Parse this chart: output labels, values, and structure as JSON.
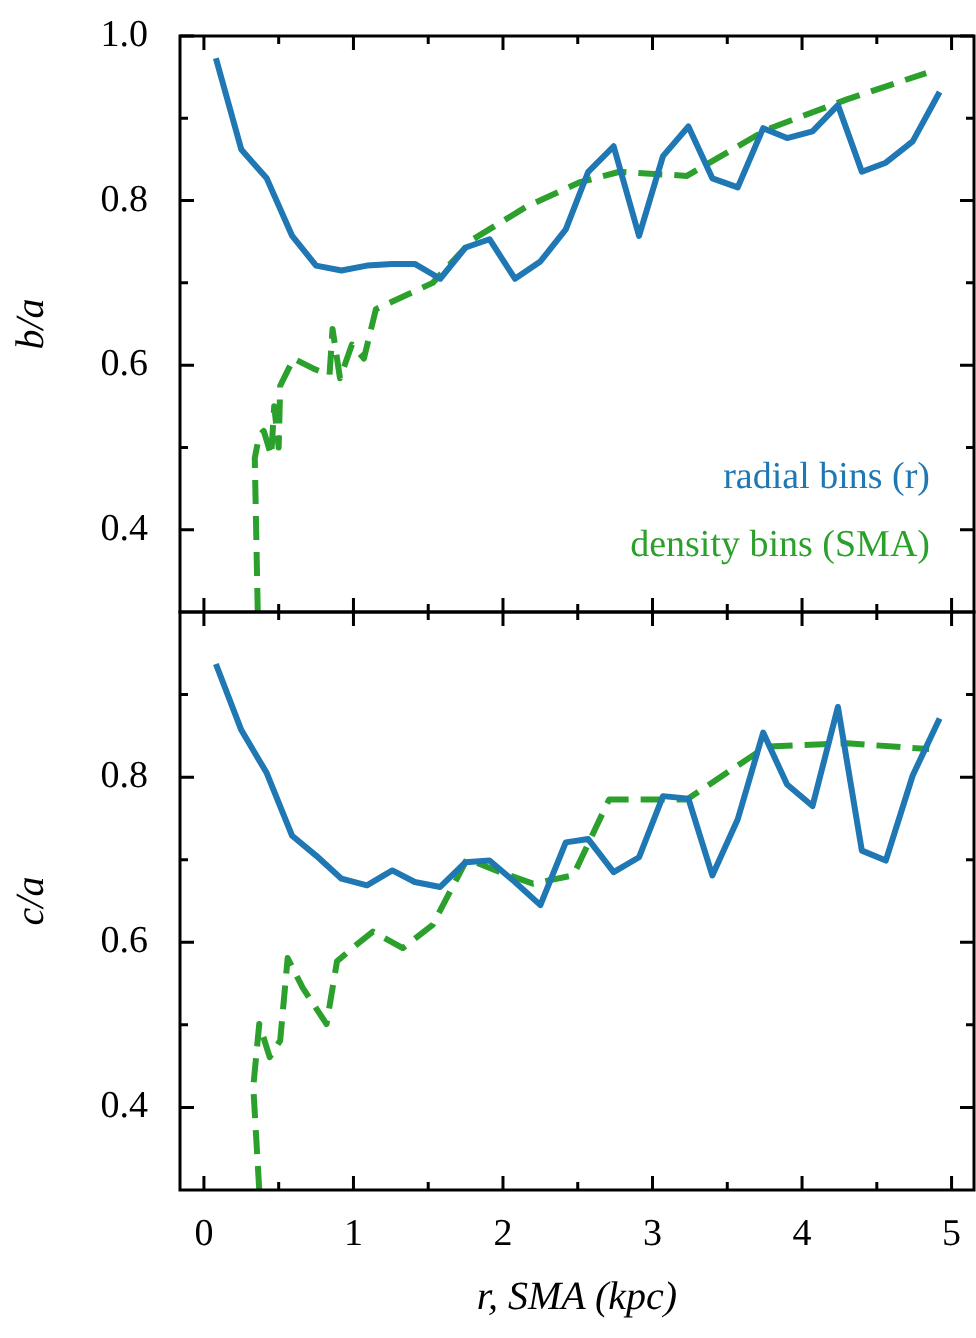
{
  "chart_data": [
    {
      "type": "line",
      "ylabel": "b/a",
      "xlim": [
        -0.16,
        5.15
      ],
      "ylim": [
        0.3,
        1.0
      ],
      "xticks": [
        0,
        {
          "value": 0.5,
          "label": null
        },
        1,
        {
          "value": 1.5,
          "label": null
        },
        2,
        {
          "value": 2.5,
          "label": null
        },
        3,
        {
          "value": 3.5,
          "label": null
        },
        4,
        {
          "value": 4.5,
          "label": null
        },
        5
      ],
      "yticks": [
        {
          "value": 0.4,
          "label": "0.4"
        },
        {
          "value": 0.5,
          "label": null
        },
        {
          "value": 0.6,
          "label": "0.6"
        },
        {
          "value": 0.7,
          "label": null
        },
        {
          "value": 0.8,
          "label": "0.8"
        },
        {
          "value": 0.9,
          "label": null
        },
        {
          "value": 1.0,
          "label": "1.0"
        }
      ],
      "tick_labels": "y",
      "grid": false,
      "legend": "bottom right",
      "marker": "none",
      "series": [
        {
          "name": "radial bins (r)",
          "color": "#1f77b4",
          "line_style": "solid",
          "x": [
            0.08,
            0.25,
            0.42,
            0.59,
            0.75,
            0.92,
            1.09,
            1.26,
            1.41,
            1.58,
            1.75,
            1.91,
            2.08,
            2.25,
            2.42,
            2.57,
            2.74,
            2.91,
            3.07,
            3.24,
            3.4,
            3.57,
            3.74,
            3.9,
            4.07,
            4.24,
            4.4,
            4.56,
            4.74,
            4.92
          ],
          "values": [
            0.973,
            0.862,
            0.827,
            0.757,
            0.721,
            0.715,
            0.721,
            0.723,
            0.723,
            0.705,
            0.743,
            0.753,
            0.705,
            0.726,
            0.765,
            0.835,
            0.866,
            0.757,
            0.854,
            0.89,
            0.827,
            0.816,
            0.888,
            0.876,
            0.884,
            0.916,
            0.835,
            0.846,
            0.872,
            0.932
          ]
        },
        {
          "name": "density bins (SMA)",
          "color": "#2ca02c",
          "line_style": "dashed",
          "x": [
            0.36,
            0.34,
            0.37,
            0.4,
            0.45,
            0.47,
            0.5,
            0.51,
            0.6,
            0.73,
            0.84,
            0.86,
            0.91,
            0.99,
            1.07,
            1.15,
            1.53,
            1.8,
            2.16,
            2.51,
            2.78,
            3.23,
            3.76,
            4.3,
            4.83
          ],
          "values": [
            0.3,
            0.487,
            0.515,
            0.52,
            0.49,
            0.55,
            0.5,
            0.575,
            0.608,
            0.596,
            0.588,
            0.644,
            0.584,
            0.625,
            0.608,
            0.668,
            0.7,
            0.753,
            0.793,
            0.822,
            0.835,
            0.83,
            0.886,
            0.923,
            0.955
          ]
        }
      ]
    },
    {
      "type": "line",
      "xlabel": "r, SMA (kpc)",
      "ylabel": "c/a",
      "xlim": [
        -0.16,
        5.15
      ],
      "ylim": [
        0.3,
        1.0
      ],
      "xticks": [
        0,
        {
          "value": 0.5,
          "label": null
        },
        1,
        {
          "value": 1.5,
          "label": null
        },
        2,
        {
          "value": 2.5,
          "label": null
        },
        3,
        {
          "value": 3.5,
          "label": null
        },
        4,
        {
          "value": 4.5,
          "label": null
        },
        5
      ],
      "yticks": [
        {
          "value": 0.4,
          "label": "0.4"
        },
        {
          "value": 0.5,
          "label": null
        },
        {
          "value": 0.6,
          "label": "0.6"
        },
        {
          "value": 0.7,
          "label": null
        },
        {
          "value": 0.8,
          "label": "0.8"
        },
        {
          "value": 0.9,
          "label": null
        }
      ],
      "grid": false,
      "marker": "none",
      "series": [
        {
          "color": "#1f77b4",
          "line_style": "solid",
          "x": [
            0.08,
            0.25,
            0.42,
            0.59,
            0.75,
            0.92,
            1.09,
            1.26,
            1.41,
            1.58,
            1.75,
            1.91,
            2.08,
            2.25,
            2.42,
            2.57,
            2.74,
            2.91,
            3.07,
            3.24,
            3.4,
            3.57,
            3.74,
            3.9,
            4.07,
            4.24,
            4.4,
            4.56,
            4.74,
            4.92
          ],
          "values": [
            0.937,
            0.857,
            0.805,
            0.729,
            0.705,
            0.677,
            0.669,
            0.687,
            0.673,
            0.667,
            0.697,
            0.699,
            0.673,
            0.645,
            0.721,
            0.725,
            0.685,
            0.703,
            0.777,
            0.774,
            0.681,
            0.749,
            0.854,
            0.791,
            0.765,
            0.885,
            0.711,
            0.699,
            0.802,
            0.871
          ]
        },
        {
          "color": "#2ca02c",
          "line_style": "dashed",
          "x": [
            0.37,
            0.33,
            0.37,
            0.44,
            0.51,
            0.56,
            0.66,
            0.82,
            0.89,
            1.0,
            1.13,
            1.33,
            1.53,
            1.76,
            1.98,
            2.2,
            2.47,
            2.71,
            3.23,
            3.76,
            4.3,
            4.85
          ],
          "values": [
            0.3,
            0.425,
            0.501,
            0.461,
            0.481,
            0.581,
            0.545,
            0.501,
            0.577,
            0.594,
            0.613,
            0.593,
            0.621,
            0.701,
            0.685,
            0.671,
            0.681,
            0.773,
            0.773,
            0.837,
            0.841,
            0.834
          ]
        }
      ]
    }
  ]
}
